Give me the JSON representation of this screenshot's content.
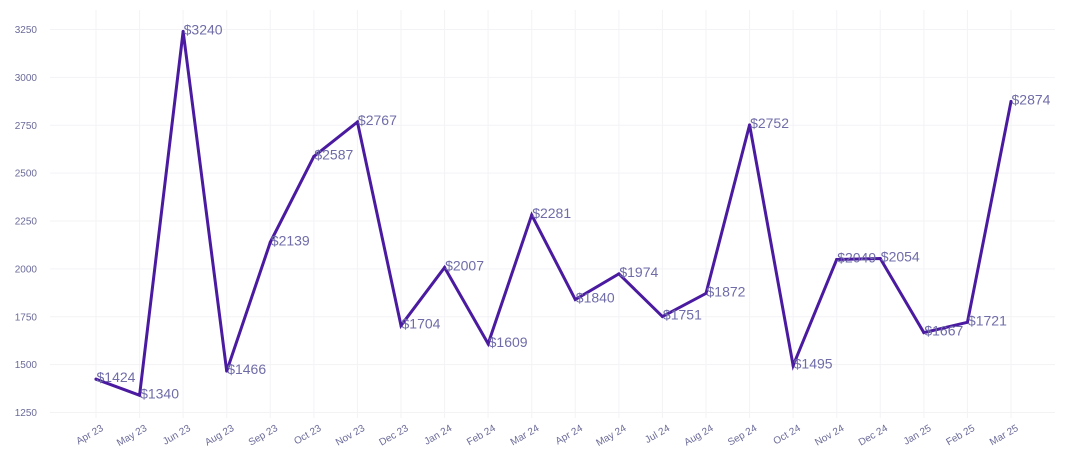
{
  "chart_data": {
    "type": "line",
    "title": "",
    "xlabel": "",
    "ylabel": "",
    "categories": [
      "Apr 23",
      "May 23",
      "Jun 23",
      "Aug 23",
      "Sep 23",
      "Oct 23",
      "Nov 23",
      "Dec 23",
      "Jan 24",
      "Feb 24",
      "Mar 24",
      "Apr 24",
      "May 24",
      "Jul 24",
      "Aug 24",
      "Sep 24",
      "Oct 24",
      "Nov 24",
      "Dec 24",
      "Jan 25",
      "Feb 25",
      "Mar 25"
    ],
    "series": [
      {
        "values": [
          1424,
          1340,
          3240,
          1466,
          2139,
          2587,
          2767,
          1704,
          2007,
          1609,
          2281,
          1840,
          1974,
          1751,
          1872,
          2752,
          1495,
          2049,
          2054,
          1667,
          1721,
          2874
        ],
        "labels": [
          "$1424",
          "$1340",
          "$3240",
          "$1466",
          "$2139",
          "$2587",
          "$2767",
          "$1704",
          "$2007",
          "$1609",
          "$2281",
          "$1840",
          "$1974",
          "$1751",
          "$1872",
          "$2752",
          "$1495",
          "$2049",
          "$2054",
          "$1667",
          "$1721",
          "$2874"
        ]
      }
    ],
    "y_ticks": [
      1250,
      1500,
      1750,
      2000,
      2250,
      2500,
      2750,
      3000,
      3250
    ],
    "ylim": [
      1250,
      3330
    ],
    "grid": true,
    "legend": "none",
    "colors": {
      "line": "#4a1aa0",
      "tick_text": "#6b6b9a",
      "label_text": "#6f6ca8",
      "grid": "#f3f3f6"
    }
  }
}
